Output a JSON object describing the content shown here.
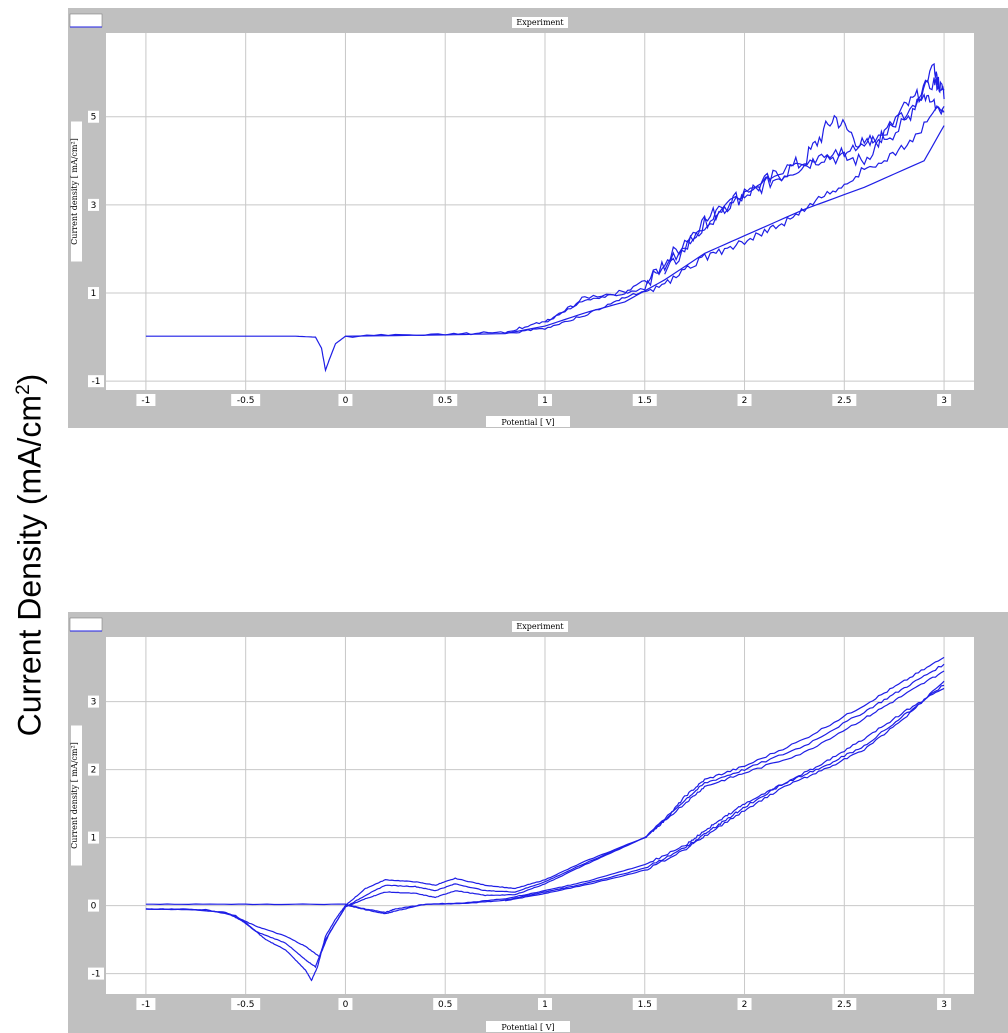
{
  "page": {
    "ylabel_main": "Current Density (mA/cm",
    "ylabel_sup": "2",
    "ylabel_close": ")"
  },
  "colors": {
    "panel_background": "#c0c0c0",
    "plot_background": "#ffffff",
    "grid": "#c8c8c8",
    "trace": "#1e1ee6",
    "tick_box": "#ffffff"
  },
  "chart_data": [
    {
      "type": "line",
      "title": "Experiment",
      "xlabel": "Potential [ V]",
      "ylabel": "Current density [ mA/cm²]",
      "xlim": [
        -1.2,
        3.15
      ],
      "ylim": [
        -1.2,
        6.9
      ],
      "xticks": [
        -1,
        -0.5,
        0,
        0.5,
        1,
        1.5,
        2,
        2.5,
        3
      ],
      "xtick_labels": [
        "-1",
        "-0.5",
        "0",
        "0.5",
        "1",
        "1.5",
        "2",
        "2.5",
        "3"
      ],
      "yticks": [
        -1,
        1,
        3,
        5
      ],
      "ytick_labels": [
        "-1",
        "1",
        "3",
        "5"
      ],
      "grid": true,
      "legend": "top-left",
      "series": [
        {
          "name": "",
          "noise": 0,
          "points": [
            [
              -1,
              0.02
            ],
            [
              -0.6,
              0.02
            ],
            [
              -0.25,
              0.02
            ],
            [
              -0.15,
              0.0
            ],
            [
              -0.12,
              -0.25
            ],
            [
              -0.1,
              -0.75
            ],
            [
              -0.08,
              -0.5
            ],
            [
              -0.05,
              -0.15
            ],
            [
              0,
              0.02
            ],
            [
              0.5,
              0.05
            ],
            [
              0.8,
              0.08
            ],
            [
              1.0,
              0.25
            ],
            [
              1.2,
              0.55
            ],
            [
              1.4,
              0.8
            ],
            [
              1.6,
              1.3
            ],
            [
              1.8,
              1.9
            ],
            [
              2.0,
              2.3
            ],
            [
              2.3,
              2.9
            ],
            [
              2.6,
              3.4
            ],
            [
              2.9,
              4.0
            ],
            [
              3.0,
              4.8
            ]
          ]
        },
        {
          "name": "",
          "noise": 0.15,
          "points": [
            [
              3.0,
              5.1
            ],
            [
              2.9,
              5.5
            ],
            [
              2.7,
              4.6
            ],
            [
              2.5,
              4.2
            ],
            [
              2.3,
              4.0
            ],
            [
              2.0,
              3.3
            ],
            [
              1.8,
              2.5
            ],
            [
              1.6,
              1.6
            ],
            [
              1.4,
              1.0
            ],
            [
              1.2,
              0.85
            ],
            [
              1.0,
              0.35
            ],
            [
              0.8,
              0.12
            ],
            [
              0.5,
              0.05
            ],
            [
              0,
              0.02
            ]
          ]
        },
        {
          "name": "",
          "noise": 0.25,
          "points": [
            [
              1.0,
              0.3
            ],
            [
              1.2,
              0.9
            ],
            [
              1.5,
              1.1
            ],
            [
              1.7,
              2.2
            ],
            [
              1.9,
              3.0
            ],
            [
              2.1,
              3.5
            ],
            [
              2.3,
              4.0
            ],
            [
              2.45,
              5.0
            ],
            [
              2.6,
              4.3
            ],
            [
              2.8,
              4.8
            ],
            [
              2.95,
              6.2
            ],
            [
              3.0,
              5.4
            ]
          ]
        },
        {
          "name": "",
          "noise": 0.12,
          "points": [
            [
              3.0,
              5.3
            ],
            [
              2.8,
              4.3
            ],
            [
              2.6,
              3.8
            ],
            [
              2.4,
              3.2
            ],
            [
              2.2,
              2.6
            ],
            [
              2.0,
              2.2
            ],
            [
              1.8,
              1.8
            ],
            [
              1.6,
              1.2
            ],
            [
              1.4,
              0.9
            ],
            [
              1.2,
              0.5
            ],
            [
              1.0,
              0.2
            ],
            [
              0.8,
              0.08
            ]
          ]
        },
        {
          "name": "",
          "noise": 0.2,
          "points": [
            [
              1.6,
              1.4
            ],
            [
              1.8,
              2.6
            ],
            [
              2.0,
              3.2
            ],
            [
              2.2,
              3.7
            ],
            [
              2.4,
              4.1
            ],
            [
              2.6,
              4.0
            ],
            [
              2.8,
              5.2
            ],
            [
              2.95,
              5.8
            ],
            [
              3.0,
              5.6
            ]
          ]
        }
      ]
    },
    {
      "type": "line",
      "title": "Experiment",
      "xlabel": "Potential [ V]",
      "ylabel": "Current density [ mA/cm²]",
      "xlim": [
        -1.2,
        3.15
      ],
      "ylim": [
        -1.3,
        3.95
      ],
      "xticks": [
        -1,
        -0.5,
        0,
        0.5,
        1,
        1.5,
        2,
        2.5,
        3
      ],
      "xtick_labels": [
        "-1",
        "-0.5",
        "0",
        "0.5",
        "1",
        "1.5",
        "2",
        "2.5",
        "3"
      ],
      "yticks": [
        -1,
        0,
        1,
        2,
        3
      ],
      "ytick_labels": [
        "-1",
        "0",
        "1",
        "2",
        "3"
      ],
      "grid": true,
      "legend": "top-left",
      "series": [
        {
          "name": "",
          "noise": 0.02,
          "points": [
            [
              -1,
              -0.05
            ],
            [
              -0.8,
              -0.05
            ],
            [
              -0.6,
              -0.1
            ],
            [
              -0.5,
              -0.25
            ],
            [
              -0.4,
              -0.5
            ],
            [
              -0.3,
              -0.65
            ],
            [
              -0.2,
              -0.95
            ],
            [
              -0.17,
              -1.1
            ],
            [
              -0.14,
              -0.9
            ],
            [
              -0.1,
              -0.45
            ],
            [
              -0.05,
              -0.2
            ],
            [
              0,
              0.0
            ],
            [
              0.1,
              0.25
            ],
            [
              0.2,
              0.38
            ],
            [
              0.35,
              0.35
            ],
            [
              0.45,
              0.3
            ],
            [
              0.55,
              0.4
            ],
            [
              0.7,
              0.3
            ],
            [
              0.85,
              0.25
            ],
            [
              1.0,
              0.38
            ],
            [
              1.2,
              0.65
            ],
            [
              1.5,
              1.0
            ],
            [
              1.6,
              1.25
            ],
            [
              1.7,
              1.6
            ],
            [
              1.8,
              1.85
            ],
            [
              2.0,
              2.05
            ],
            [
              2.3,
              2.45
            ],
            [
              2.6,
              2.95
            ],
            [
              2.8,
              3.3
            ],
            [
              3.0,
              3.65
            ]
          ]
        },
        {
          "name": "",
          "noise": 0.02,
          "points": [
            [
              -1,
              -0.05
            ],
            [
              -0.7,
              -0.06
            ],
            [
              -0.55,
              -0.15
            ],
            [
              -0.45,
              -0.38
            ],
            [
              -0.3,
              -0.55
            ],
            [
              -0.2,
              -0.8
            ],
            [
              -0.15,
              -0.9
            ],
            [
              -0.1,
              -0.5
            ],
            [
              0,
              -0.02
            ],
            [
              0.1,
              0.15
            ],
            [
              0.2,
              0.3
            ],
            [
              0.35,
              0.28
            ],
            [
              0.45,
              0.22
            ],
            [
              0.55,
              0.32
            ],
            [
              0.7,
              0.22
            ],
            [
              0.85,
              0.2
            ],
            [
              1.0,
              0.35
            ],
            [
              1.2,
              0.62
            ],
            [
              1.5,
              1.0
            ],
            [
              1.7,
              1.55
            ],
            [
              1.8,
              1.8
            ],
            [
              2.0,
              2.0
            ],
            [
              2.3,
              2.35
            ],
            [
              2.6,
              2.85
            ],
            [
              2.8,
              3.2
            ],
            [
              3.0,
              3.55
            ]
          ]
        },
        {
          "name": "",
          "noise": 0.02,
          "points": [
            [
              -1,
              -0.05
            ],
            [
              -0.75,
              -0.06
            ],
            [
              -0.6,
              -0.1
            ],
            [
              -0.45,
              -0.3
            ],
            [
              -0.3,
              -0.45
            ],
            [
              -0.2,
              -0.6
            ],
            [
              -0.13,
              -0.75
            ],
            [
              -0.08,
              -0.4
            ],
            [
              0,
              -0.02
            ],
            [
              0.1,
              0.1
            ],
            [
              0.2,
              0.2
            ],
            [
              0.35,
              0.18
            ],
            [
              0.45,
              0.12
            ],
            [
              0.55,
              0.22
            ],
            [
              0.7,
              0.15
            ],
            [
              0.85,
              0.16
            ],
            [
              1.0,
              0.32
            ],
            [
              1.2,
              0.6
            ],
            [
              1.5,
              1.0
            ],
            [
              1.7,
              1.5
            ],
            [
              1.8,
              1.75
            ],
            [
              2.0,
              1.95
            ],
            [
              2.3,
              2.25
            ],
            [
              2.6,
              2.75
            ],
            [
              2.8,
              3.1
            ],
            [
              3.0,
              3.45
            ]
          ]
        },
        {
          "name": "",
          "noise": 0.02,
          "points": [
            [
              3.0,
              3.25
            ],
            [
              2.8,
              2.8
            ],
            [
              2.6,
              2.35
            ],
            [
              2.4,
              2.05
            ],
            [
              2.2,
              1.8
            ],
            [
              2.0,
              1.45
            ],
            [
              1.9,
              1.25
            ],
            [
              1.8,
              1.05
            ],
            [
              1.7,
              0.85
            ],
            [
              1.5,
              0.55
            ],
            [
              1.2,
              0.32
            ],
            [
              1.0,
              0.2
            ],
            [
              0.8,
              0.08
            ],
            [
              0.6,
              0.03
            ],
            [
              0.4,
              0.02
            ],
            [
              0.25,
              -0.05
            ],
            [
              0.2,
              -0.1
            ],
            [
              0.1,
              -0.05
            ],
            [
              0,
              0.02
            ],
            [
              -0.5,
              0.02
            ],
            [
              -1,
              0.02
            ]
          ]
        },
        {
          "name": "",
          "noise": 0.02,
          "points": [
            [
              3.0,
              3.2
            ],
            [
              2.8,
              2.85
            ],
            [
              2.6,
              2.45
            ],
            [
              2.4,
              2.1
            ],
            [
              2.2,
              1.8
            ],
            [
              2.0,
              1.5
            ],
            [
              1.9,
              1.3
            ],
            [
              1.8,
              1.1
            ],
            [
              1.7,
              0.88
            ],
            [
              1.5,
              0.6
            ],
            [
              1.2,
              0.35
            ],
            [
              1.0,
              0.22
            ],
            [
              0.8,
              0.1
            ],
            [
              0.6,
              0.04
            ],
            [
              0.4,
              0.02
            ],
            [
              0.25,
              -0.08
            ],
            [
              0.2,
              -0.12
            ],
            [
              0.1,
              -0.06
            ],
            [
              0,
              0.01
            ]
          ]
        },
        {
          "name": "",
          "noise": 0.02,
          "points": [
            [
              3.0,
              3.3
            ],
            [
              2.8,
              2.75
            ],
            [
              2.6,
              2.3
            ],
            [
              2.4,
              2.0
            ],
            [
              2.2,
              1.75
            ],
            [
              2.0,
              1.4
            ],
            [
              1.8,
              1.02
            ],
            [
              1.7,
              0.82
            ],
            [
              1.5,
              0.52
            ],
            [
              1.2,
              0.3
            ],
            [
              1.0,
              0.18
            ],
            [
              0.8,
              0.07
            ]
          ]
        }
      ]
    }
  ]
}
